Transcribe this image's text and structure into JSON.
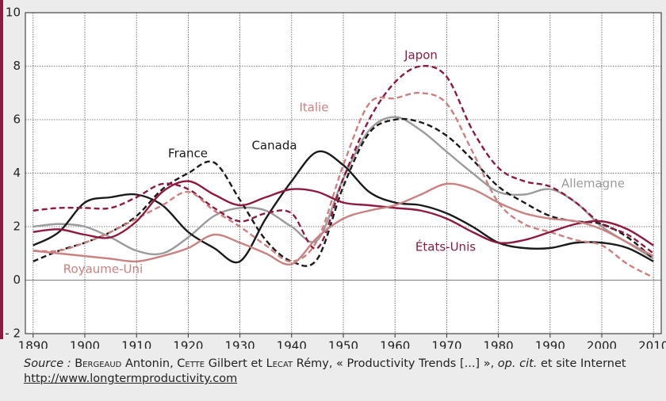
{
  "chart_data": {
    "type": "line",
    "xlim": [
      1888.5,
      2011.5
    ],
    "xticks": [
      1890,
      1900,
      1910,
      1920,
      1930,
      1940,
      1950,
      1960,
      1970,
      1980,
      1990,
      2000,
      2010
    ],
    "ylim": [
      -2,
      10
    ],
    "yticks": [
      {
        "value": -2,
        "label": "- 2"
      },
      0,
      2,
      4,
      6,
      8,
      10
    ],
    "grid": true,
    "x": [
      1890,
      1895,
      1900,
      1905,
      1910,
      1915,
      1920,
      1925,
      1930,
      1935,
      1940,
      1945,
      1950,
      1955,
      1960,
      1965,
      1970,
      1975,
      1980,
      1985,
      1990,
      1995,
      2000,
      2005,
      2010
    ],
    "series": [
      {
        "name": "Allemagne",
        "color": "#9b9b9b",
        "dashed": false,
        "values": [
          2.0,
          2.1,
          2.0,
          1.6,
          1.1,
          1.0,
          1.6,
          2.4,
          2.7,
          2.6,
          2.0,
          1.5,
          3.8,
          5.6,
          6.1,
          5.6,
          4.8,
          4.0,
          3.3,
          3.2,
          3.4,
          2.9,
          2.0,
          1.4,
          0.8
        ]
      },
      {
        "name": "Canada",
        "color": "#1a1a1a",
        "dashed": false,
        "values": [
          1.3,
          1.8,
          2.9,
          3.1,
          3.2,
          2.8,
          1.8,
          1.2,
          0.7,
          2.3,
          3.7,
          4.8,
          4.3,
          3.3,
          2.9,
          2.8,
          2.5,
          2.0,
          1.4,
          1.2,
          1.2,
          1.4,
          1.4,
          1.2,
          0.7
        ]
      },
      {
        "name": "France",
        "color": "#1a1a1a",
        "dashed": true,
        "values": [
          0.7,
          1.1,
          1.4,
          1.8,
          2.4,
          3.4,
          4.0,
          4.4,
          3.0,
          1.5,
          0.7,
          0.8,
          3.5,
          5.5,
          6.0,
          5.9,
          5.4,
          4.5,
          3.5,
          2.9,
          2.4,
          2.2,
          2.1,
          1.6,
          0.8
        ]
      },
      {
        "name": "Japon",
        "color": "#8c1b3f",
        "dashed": true,
        "values": [
          2.6,
          2.7,
          2.7,
          2.7,
          3.1,
          3.6,
          3.4,
          2.7,
          2.2,
          2.5,
          2.5,
          1.2,
          3.8,
          6.0,
          7.4,
          8.0,
          7.6,
          5.6,
          4.2,
          3.7,
          3.5,
          2.9,
          2.1,
          1.7,
          1.0
        ]
      },
      {
        "name": "Italie",
        "color": "#cc8080",
        "dashed": true,
        "values": [
          1.1,
          1.1,
          1.4,
          1.8,
          2.3,
          2.8,
          3.3,
          2.6,
          2.0,
          1.3,
          0.7,
          1.5,
          4.3,
          6.6,
          6.8,
          7.0,
          6.6,
          4.8,
          2.9,
          2.1,
          1.8,
          1.5,
          1.3,
          0.6,
          0.1
        ]
      },
      {
        "name": "États-Unis",
        "color": "#8c1b3f",
        "dashed": false,
        "values": [
          1.8,
          1.9,
          1.7,
          1.6,
          2.2,
          3.3,
          3.7,
          3.2,
          2.8,
          3.1,
          3.4,
          3.3,
          2.9,
          2.8,
          2.7,
          2.6,
          2.3,
          1.8,
          1.4,
          1.5,
          1.8,
          2.1,
          2.2,
          1.9,
          1.3
        ]
      },
      {
        "name": "Royaume-Uni",
        "color": "#c98282",
        "dashed": false,
        "values": [
          1.1,
          1.0,
          0.9,
          0.8,
          0.7,
          0.9,
          1.2,
          1.7,
          1.4,
          1.0,
          0.6,
          1.6,
          2.3,
          2.6,
          2.8,
          3.2,
          3.6,
          3.4,
          2.9,
          2.5,
          2.3,
          2.2,
          1.9,
          1.4,
          0.9
        ]
      }
    ],
    "source": [
      "Source :",
      "Bergeaud",
      "Antonin,",
      "Cette",
      "Gilbert et",
      "Lecat",
      "Rémy, « Productivity Trends [...] »,",
      "op. cit.",
      "et site Internet",
      "http://www.longtermproductivity.com"
    ]
  }
}
